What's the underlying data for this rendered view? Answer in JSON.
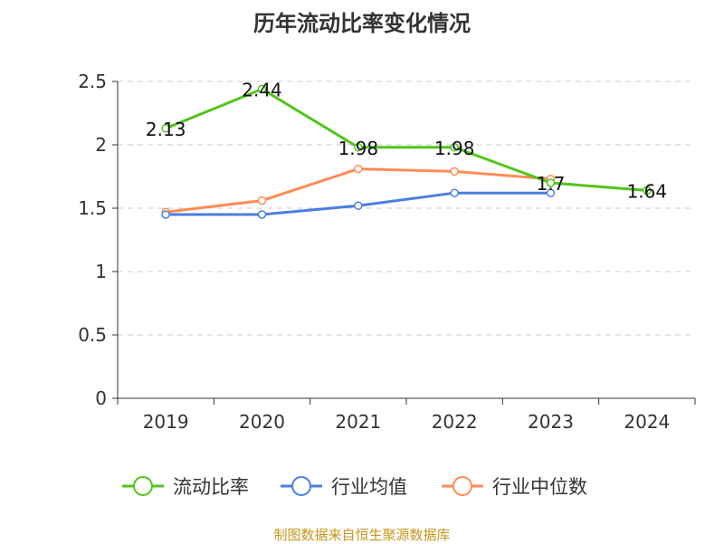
{
  "title": "历年流动比率变化情况",
  "source": "制图数据来自恒生聚源数据库",
  "chart_data": {
    "type": "line",
    "title": "历年流动比率变化情况",
    "categories": [
      "2019",
      "2020",
      "2021",
      "2022",
      "2023",
      "2024"
    ],
    "ylim": [
      0,
      2.5
    ],
    "yticks": [
      "0",
      "0.5",
      "1",
      "1.5",
      "2",
      "2.5"
    ],
    "grid": true,
    "legend": "bottom",
    "series": [
      {
        "name": "流动比率",
        "color": "#52c41a",
        "values": [
          2.13,
          2.44,
          1.98,
          1.98,
          1.7,
          1.64
        ],
        "labels": [
          "2.13",
          "2.44",
          "1.98",
          "1.98",
          "1.7",
          "1.64"
        ]
      },
      {
        "name": "行业均值",
        "color": "#4a7ee0",
        "values": [
          1.45,
          1.45,
          1.52,
          1.62,
          1.62,
          null
        ]
      },
      {
        "name": "行业中位数",
        "color": "#ff8c55",
        "values": [
          1.47,
          1.56,
          1.81,
          1.79,
          1.73,
          null
        ]
      }
    ]
  }
}
